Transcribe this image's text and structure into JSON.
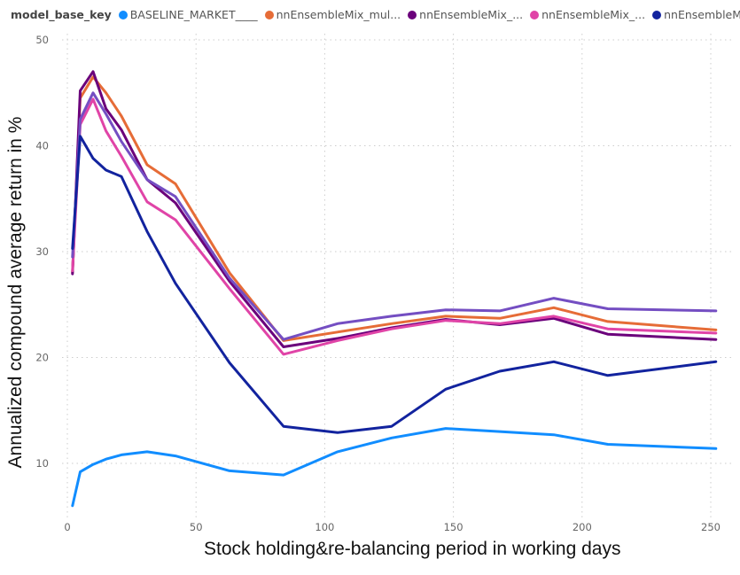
{
  "chart_data": {
    "type": "line",
    "title": "",
    "legend_title": "model_base_key",
    "legend_placement": "top-left",
    "xlabel": "Stock holding&re-balancing period in working days",
    "ylabel": "Annualized compound average return in %",
    "xlim": [
      0,
      255
    ],
    "ylim": [
      5,
      50
    ],
    "xticks": [
      0,
      50,
      100,
      150,
      200,
      250
    ],
    "yticks": [
      10,
      20,
      30,
      40,
      50
    ],
    "grid": true,
    "x": [
      2,
      5,
      10,
      15,
      21,
      31,
      42,
      63,
      84,
      105,
      126,
      147,
      168,
      189,
      210,
      252
    ],
    "series": [
      {
        "name": "BASELINE_MARKET____",
        "color": "#118DFF",
        "in_legend": true,
        "values": [
          6.0,
          9.2,
          9.9,
          10.4,
          10.8,
          11.1,
          10.7,
          9.3,
          8.9,
          11.1,
          12.4,
          13.3,
          13.0,
          12.7,
          11.8,
          11.4
        ]
      },
      {
        "name": "nnEnsembleMix_mul...",
        "color": "#E66C37",
        "in_legend": true,
        "values": [
          28.0,
          44.5,
          46.5,
          45.0,
          42.8,
          38.2,
          36.4,
          28.0,
          21.6,
          22.4,
          23.2,
          23.9,
          23.7,
          24.7,
          23.4,
          22.6
        ]
      },
      {
        "name": "nnEnsembleMix_...",
        "color": "#6B007B",
        "in_legend": true,
        "values": [
          27.9,
          45.2,
          47.0,
          43.5,
          41.5,
          36.8,
          34.6,
          27.2,
          21.0,
          21.8,
          22.8,
          23.6,
          23.1,
          23.7,
          22.2,
          21.7
        ]
      },
      {
        "name": "nnEnsembleMix_...",
        "color": "#E044A7",
        "in_legend": true,
        "values": [
          28.2,
          42.0,
          44.4,
          41.4,
          39.0,
          34.7,
          33.0,
          26.5,
          20.3,
          21.6,
          22.7,
          23.5,
          23.2,
          23.9,
          22.7,
          22.3
        ]
      },
      {
        "name": "nnEnsembleMi...",
        "color": "#12239E",
        "in_legend": true,
        "values": [
          30.3,
          40.9,
          38.8,
          37.7,
          37.1,
          31.9,
          27.0,
          19.5,
          13.5,
          12.9,
          13.5,
          17.0,
          18.7,
          19.6,
          18.3,
          19.6
        ]
      },
      {
        "name": "",
        "color": "#744EC2",
        "in_legend": false,
        "values": [
          29.5,
          42.5,
          45.0,
          43.0,
          40.4,
          36.8,
          35.2,
          27.5,
          21.7,
          23.2,
          23.9,
          24.5,
          24.4,
          25.6,
          24.6,
          24.4
        ]
      }
    ]
  }
}
